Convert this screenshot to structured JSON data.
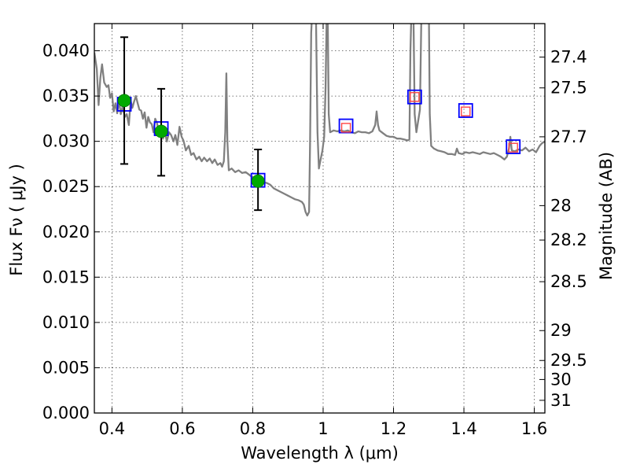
{
  "chart_data": {
    "type": "scatter",
    "xlabel": "Wavelength  λ (μm)",
    "ylabel": "Flux  Fν  ( μJy )",
    "y2label": "Magnitude (AB)",
    "xlim": [
      0.35,
      1.63
    ],
    "ylim": [
      0.0,
      0.043
    ],
    "grid": true,
    "x_ticks": [
      {
        "value": 0.4,
        "label": "0.4"
      },
      {
        "value": 0.6,
        "label": "0.6"
      },
      {
        "value": 0.8,
        "label": "0.8"
      },
      {
        "value": 1.0,
        "label": "1"
      },
      {
        "value": 1.2,
        "label": "1.2"
      },
      {
        "value": 1.4,
        "label": "1.4"
      },
      {
        "value": 1.6,
        "label": "1.6"
      }
    ],
    "y_ticks": [
      {
        "value": 0.0,
        "label": "0.000"
      },
      {
        "value": 0.005,
        "label": "0.005"
      },
      {
        "value": 0.01,
        "label": "0.010"
      },
      {
        "value": 0.015,
        "label": "0.015"
      },
      {
        "value": 0.02,
        "label": "0.020"
      },
      {
        "value": 0.025,
        "label": "0.025"
      },
      {
        "value": 0.03,
        "label": "0.030"
      },
      {
        "value": 0.035,
        "label": "0.035"
      },
      {
        "value": 0.04,
        "label": "0.040"
      }
    ],
    "mag_ticks": [
      {
        "flux": 0.0393,
        "label": "27.4"
      },
      {
        "flux": 0.0359,
        "label": "27.5"
      },
      {
        "flux": 0.0305,
        "label": "27.7"
      },
      {
        "flux": 0.0229,
        "label": "28"
      },
      {
        "flux": 0.0191,
        "label": "28.2"
      },
      {
        "flux": 0.0145,
        "label": "28.5"
      },
      {
        "flux": 0.0091,
        "label": "29"
      },
      {
        "flux": 0.0058,
        "label": "29.5"
      },
      {
        "flux": 0.0037,
        "label": "30"
      },
      {
        "flux": 0.0014,
        "label": "31"
      }
    ],
    "series": [
      {
        "kind": "line",
        "color": "#808080",
        "points": [
          [
            0.35,
            0.0398
          ],
          [
            0.357,
            0.038
          ],
          [
            0.362,
            0.034
          ],
          [
            0.367,
            0.037
          ],
          [
            0.372,
            0.0385
          ],
          [
            0.378,
            0.0365
          ],
          [
            0.385,
            0.036
          ],
          [
            0.39,
            0.0362
          ],
          [
            0.395,
            0.0348
          ],
          [
            0.4,
            0.0353
          ],
          [
            0.405,
            0.0333
          ],
          [
            0.41,
            0.0342
          ],
          [
            0.415,
            0.0331
          ],
          [
            0.42,
            0.0346
          ],
          [
            0.425,
            0.033
          ],
          [
            0.43,
            0.0338
          ],
          [
            0.437,
            0.0327
          ],
          [
            0.442,
            0.033
          ],
          [
            0.448,
            0.0318
          ],
          [
            0.453,
            0.0345
          ],
          [
            0.458,
            0.0337
          ],
          [
            0.463,
            0.0344
          ],
          [
            0.468,
            0.035
          ],
          [
            0.473,
            0.0342
          ],
          [
            0.478,
            0.0335
          ],
          [
            0.483,
            0.0334
          ],
          [
            0.488,
            0.0325
          ],
          [
            0.493,
            0.0332
          ],
          [
            0.498,
            0.0315
          ],
          [
            0.503,
            0.0327
          ],
          [
            0.508,
            0.0321
          ],
          [
            0.513,
            0.0319
          ],
          [
            0.518,
            0.031
          ],
          [
            0.523,
            0.0325
          ],
          [
            0.528,
            0.032
          ],
          [
            0.533,
            0.0311
          ],
          [
            0.54,
            0.0316
          ],
          [
            0.545,
            0.0303
          ],
          [
            0.55,
            0.0311
          ],
          [
            0.556,
            0.03
          ],
          [
            0.562,
            0.031
          ],
          [
            0.568,
            0.0307
          ],
          [
            0.575,
            0.03
          ],
          [
            0.58,
            0.0307
          ],
          [
            0.586,
            0.0296
          ],
          [
            0.592,
            0.0316
          ],
          [
            0.598,
            0.0305
          ],
          [
            0.603,
            0.0301
          ],
          [
            0.61,
            0.029
          ],
          [
            0.618,
            0.0295
          ],
          [
            0.625,
            0.0285
          ],
          [
            0.632,
            0.0287
          ],
          [
            0.64,
            0.028
          ],
          [
            0.648,
            0.0283
          ],
          [
            0.655,
            0.0278
          ],
          [
            0.662,
            0.0282
          ],
          [
            0.67,
            0.0278
          ],
          [
            0.678,
            0.0281
          ],
          [
            0.685,
            0.0276
          ],
          [
            0.692,
            0.028
          ],
          [
            0.7,
            0.0274
          ],
          [
            0.708,
            0.0276
          ],
          [
            0.713,
            0.0272
          ],
          [
            0.718,
            0.0278
          ],
          [
            0.722,
            0.031
          ],
          [
            0.725,
            0.0375
          ],
          [
            0.728,
            0.03
          ],
          [
            0.732,
            0.0268
          ],
          [
            0.74,
            0.027
          ],
          [
            0.75,
            0.0266
          ],
          [
            0.76,
            0.0268
          ],
          [
            0.77,
            0.0265
          ],
          [
            0.78,
            0.0266
          ],
          [
            0.79,
            0.0263
          ],
          [
            0.8,
            0.026
          ],
          [
            0.81,
            0.0258
          ],
          [
            0.82,
            0.0256
          ],
          [
            0.83,
            0.0255
          ],
          [
            0.84,
            0.0254
          ],
          [
            0.85,
            0.0252
          ],
          [
            0.86,
            0.0248
          ],
          [
            0.87,
            0.0246
          ],
          [
            0.88,
            0.0244
          ],
          [
            0.89,
            0.0242
          ],
          [
            0.9,
            0.024
          ],
          [
            0.91,
            0.0238
          ],
          [
            0.92,
            0.0236
          ],
          [
            0.93,
            0.0235
          ],
          [
            0.94,
            0.0233
          ],
          [
            0.945,
            0.023
          ],
          [
            0.95,
            0.0222
          ],
          [
            0.955,
            0.0218
          ],
          [
            0.96,
            0.0222
          ],
          [
            0.963,
            0.03
          ],
          [
            0.966,
            0.042
          ],
          [
            0.97,
            0.045
          ],
          [
            0.975,
            0.045
          ],
          [
            0.98,
            0.043
          ],
          [
            0.984,
            0.031
          ],
          [
            0.988,
            0.027
          ],
          [
            0.993,
            0.028
          ],
          [
            0.998,
            0.029
          ],
          [
            1.003,
            0.0305
          ],
          [
            1.007,
            0.036
          ],
          [
            1.01,
            0.044
          ],
          [
            1.013,
            0.044
          ],
          [
            1.016,
            0.033
          ],
          [
            1.02,
            0.031
          ],
          [
            1.03,
            0.0312
          ],
          [
            1.04,
            0.0311
          ],
          [
            1.05,
            0.0312
          ],
          [
            1.06,
            0.0311
          ],
          [
            1.07,
            0.0312
          ],
          [
            1.08,
            0.031
          ],
          [
            1.09,
            0.0309
          ],
          [
            1.1,
            0.0311
          ],
          [
            1.11,
            0.031
          ],
          [
            1.12,
            0.031
          ],
          [
            1.13,
            0.0309
          ],
          [
            1.14,
            0.0311
          ],
          [
            1.148,
            0.0318
          ],
          [
            1.152,
            0.0333
          ],
          [
            1.156,
            0.0318
          ],
          [
            1.16,
            0.0312
          ],
          [
            1.17,
            0.0309
          ],
          [
            1.18,
            0.0306
          ],
          [
            1.19,
            0.0305
          ],
          [
            1.2,
            0.0305
          ],
          [
            1.21,
            0.0303
          ],
          [
            1.22,
            0.0303
          ],
          [
            1.23,
            0.0302
          ],
          [
            1.24,
            0.0301
          ],
          [
            1.245,
            0.0302
          ],
          [
            1.248,
            0.04
          ],
          [
            1.252,
            0.046
          ],
          [
            1.256,
            0.046
          ],
          [
            1.26,
            0.033
          ],
          [
            1.265,
            0.031
          ],
          [
            1.275,
            0.0335
          ],
          [
            1.28,
            0.046
          ],
          [
            1.3,
            0.046
          ],
          [
            1.303,
            0.033
          ],
          [
            1.307,
            0.0295
          ],
          [
            1.315,
            0.0292
          ],
          [
            1.325,
            0.029
          ],
          [
            1.335,
            0.0289
          ],
          [
            1.345,
            0.0288
          ],
          [
            1.355,
            0.0286
          ],
          [
            1.365,
            0.0286
          ],
          [
            1.375,
            0.0285
          ],
          [
            1.38,
            0.0292
          ],
          [
            1.385,
            0.0287
          ],
          [
            1.395,
            0.0286
          ],
          [
            1.405,
            0.0288
          ],
          [
            1.415,
            0.0287
          ],
          [
            1.425,
            0.0288
          ],
          [
            1.435,
            0.0287
          ],
          [
            1.445,
            0.0286
          ],
          [
            1.455,
            0.0288
          ],
          [
            1.465,
            0.0287
          ],
          [
            1.475,
            0.0286
          ],
          [
            1.485,
            0.0287
          ],
          [
            1.495,
            0.0285
          ],
          [
            1.505,
            0.0283
          ],
          [
            1.515,
            0.028
          ],
          [
            1.522,
            0.0283
          ],
          [
            1.528,
            0.0292
          ],
          [
            1.532,
            0.0305
          ],
          [
            1.536,
            0.029
          ],
          [
            1.545,
            0.0289
          ],
          [
            1.555,
            0.0291
          ],
          [
            1.565,
            0.029
          ],
          [
            1.575,
            0.0293
          ],
          [
            1.585,
            0.0289
          ],
          [
            1.595,
            0.0291
          ],
          [
            1.605,
            0.0288
          ],
          [
            1.615,
            0.0295
          ],
          [
            1.622,
            0.0298
          ],
          [
            1.63,
            0.03
          ]
        ]
      },
      {
        "kind": "observed",
        "marker": "circle",
        "color": "#00aa00",
        "points": [
          {
            "x": 0.435,
            "y": 0.0345,
            "yerr_low": 0.0275,
            "yerr_high": 0.0415
          },
          {
            "x": 0.54,
            "y": 0.0311,
            "yerr_low": 0.0262,
            "yerr_high": 0.0358
          },
          {
            "x": 0.815,
            "y": 0.0256,
            "yerr_low": 0.0224,
            "yerr_high": 0.0291
          }
        ]
      },
      {
        "kind": "model_band",
        "marker": "square",
        "color": "#0000ff",
        "points": [
          {
            "x": 0.435,
            "y": 0.0341
          },
          {
            "x": 0.54,
            "y": 0.0314
          },
          {
            "x": 0.815,
            "y": 0.0257
          },
          {
            "x": 1.065,
            "y": 0.0317
          },
          {
            "x": 1.26,
            "y": 0.0349
          },
          {
            "x": 1.405,
            "y": 0.0334
          },
          {
            "x": 1.54,
            "y": 0.0294
          }
        ]
      },
      {
        "kind": "upper_limit",
        "marker": "square",
        "color": "#ff4444",
        "points": [
          {
            "x": 1.065,
            "y": 0.0315
          },
          {
            "x": 1.26,
            "y": 0.0349
          },
          {
            "x": 1.405,
            "y": 0.0333
          },
          {
            "x": 1.54,
            "y": 0.0293
          }
        ]
      }
    ]
  }
}
